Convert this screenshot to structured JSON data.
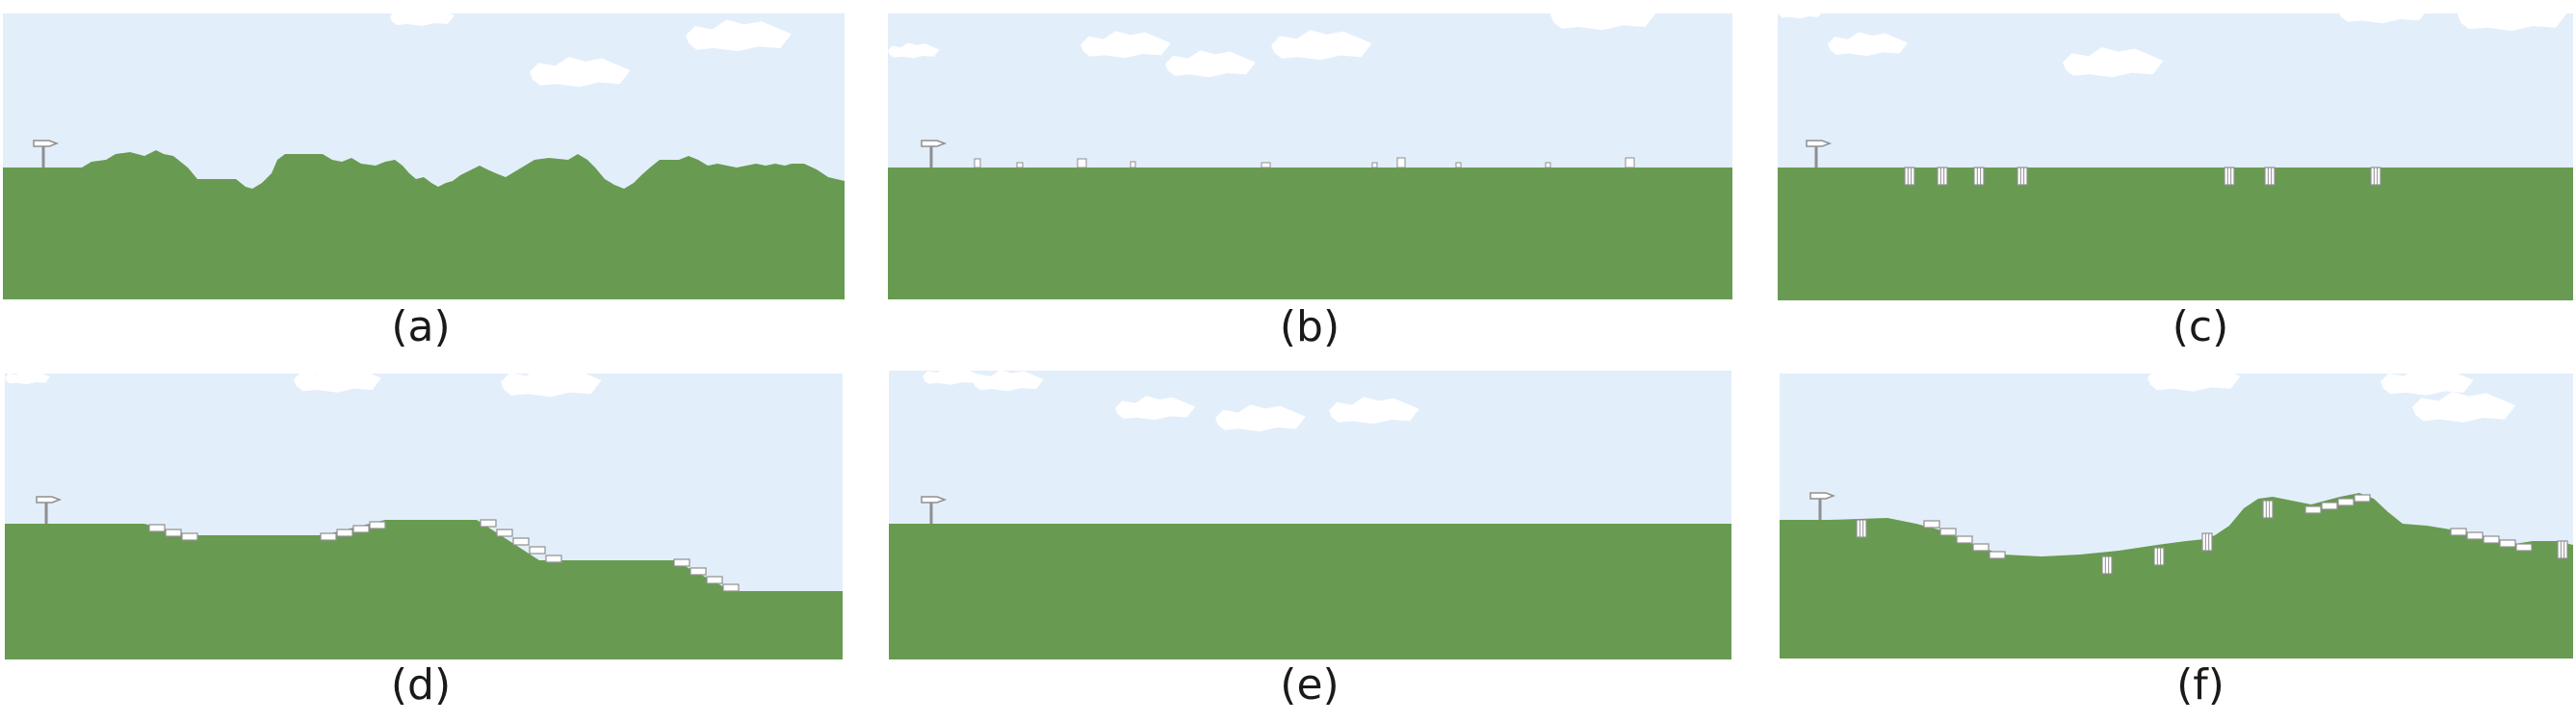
{
  "colors": {
    "sky": "#e3eefb",
    "ground": "#689b51",
    "cloud": "#ffffff",
    "block_fill": "#ffffff",
    "block_stroke": "#8f8f8f",
    "flag": "#8f8f8f"
  },
  "panels": [
    {
      "id": "a",
      "caption": "(a)",
      "terrain": "jagged hills",
      "obstacles": "none",
      "flag_icon": "checkpoint-flag-icon"
    },
    {
      "id": "b",
      "caption": "(b)",
      "terrain": "flat",
      "obstacles": "small outlined boxes on ground",
      "flag_icon": "checkpoint-flag-icon"
    },
    {
      "id": "c",
      "caption": "(c)",
      "terrain": "flat",
      "obstacles": "striped pipes sunk in ground",
      "flag_icon": "checkpoint-flag-icon"
    },
    {
      "id": "d",
      "caption": "(d)",
      "terrain": "stepped plateaus",
      "obstacles": "staircase blocks",
      "flag_icon": "checkpoint-flag-icon"
    },
    {
      "id": "e",
      "caption": "(e)",
      "terrain": "flat",
      "obstacles": "none",
      "flag_icon": "checkpoint-flag-icon"
    },
    {
      "id": "f",
      "caption": "(f)",
      "terrain": "rolling hills",
      "obstacles": "staircase blocks and striped pipes",
      "flag_icon": "checkpoint-flag-icon"
    }
  ]
}
